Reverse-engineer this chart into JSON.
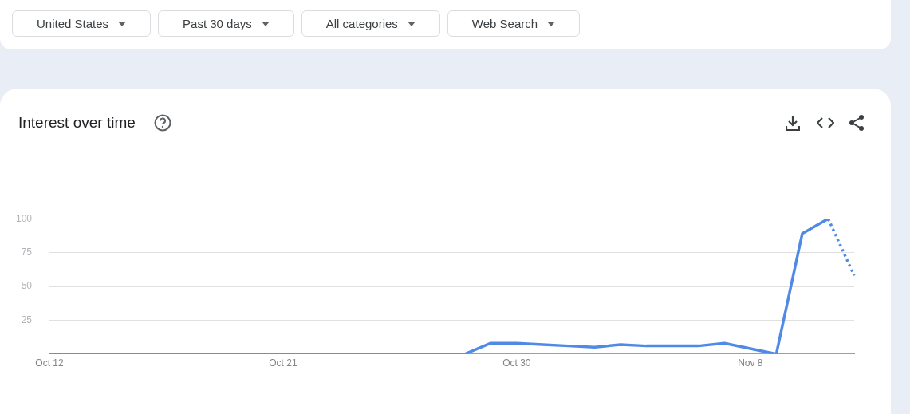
{
  "chart_data": {
    "type": "line",
    "title": "Interest over time",
    "annotations": [
      "United States",
      "Past 30 days",
      "All categories",
      "Web Search"
    ],
    "categories": [
      "Oct 12",
      null,
      null,
      null,
      null,
      null,
      null,
      null,
      null,
      "Oct 21",
      null,
      null,
      null,
      null,
      null,
      null,
      null,
      null,
      "Oct 30",
      null,
      null,
      null,
      null,
      null,
      null,
      null,
      null,
      "Nov 8",
      null,
      null,
      null,
      null
    ],
    "series": [
      {
        "color": "#4f8be6",
        "line_style": "solid",
        "values": [
          0,
          0,
          0,
          0,
          0,
          0,
          0,
          0,
          0,
          0,
          0,
          0,
          0,
          0,
          0,
          0,
          0,
          8,
          8,
          7,
          6,
          5,
          7,
          6,
          6,
          6,
          8,
          4,
          0,
          89,
          100,
          null
        ]
      },
      {
        "color": "#4f8be6",
        "line_style": "dotted",
        "values": [
          null,
          null,
          null,
          null,
          null,
          null,
          null,
          null,
          null,
          null,
          null,
          null,
          null,
          null,
          null,
          null,
          null,
          null,
          null,
          null,
          null,
          null,
          null,
          null,
          null,
          null,
          null,
          null,
          null,
          null,
          100,
          58
        ]
      }
    ],
    "ylim": [
      0,
      100
    ],
    "yticks": [
      {
        "value": 0,
        "label": null
      },
      25,
      50,
      75,
      100
    ],
    "grid": "y",
    "legend": false,
    "marker": "none"
  }
}
